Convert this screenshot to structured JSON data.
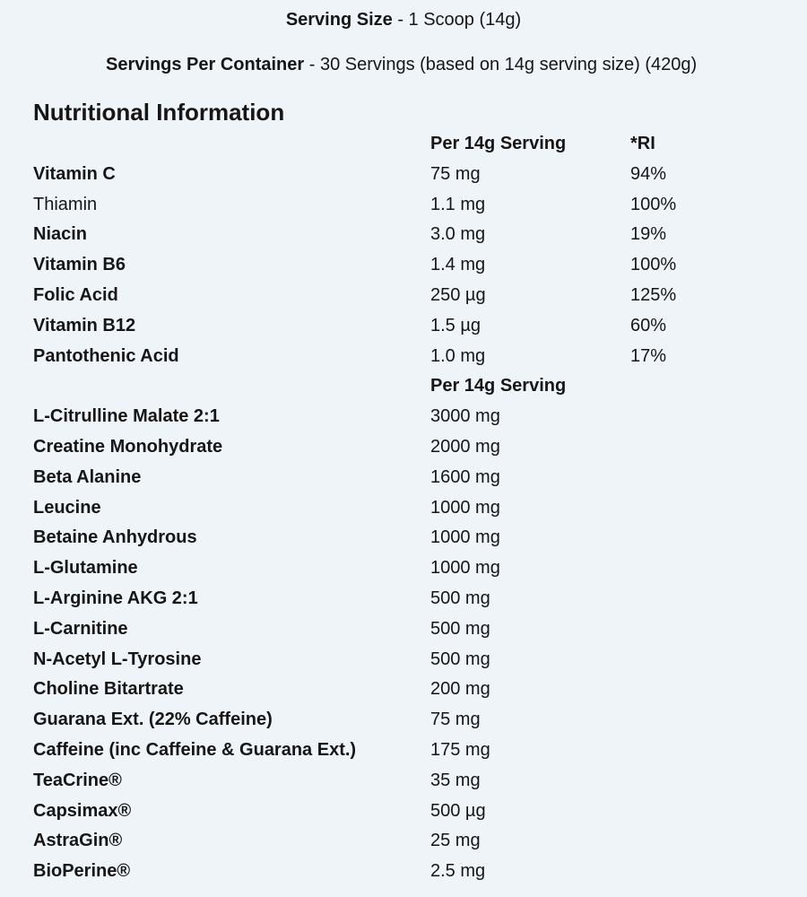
{
  "header": {
    "serving_size_label": "Serving Size",
    "serving_size_value": "- 1 Scoop (14g)",
    "servings_label": "Servings Per Container",
    "servings_value": "- 30 Servings (based on 14g serving size) (420g)"
  },
  "title": "Nutritional Information",
  "vitamins": {
    "columns": [
      "Per 14g Serving",
      "*RI"
    ],
    "rows": [
      [
        "Vitamin C",
        "75 mg",
        "94%"
      ],
      [
        "Thiamin",
        "1.1 mg",
        "100%"
      ],
      [
        "Niacin",
        "3.0 mg",
        "19%"
      ],
      [
        "Vitamin B6",
        "1.4 mg",
        "100%"
      ],
      [
        "Folic Acid",
        "250 µg",
        "125%"
      ],
      [
        "Vitamin B12",
        "1.5 µg",
        "60%"
      ],
      [
        "Pantothenic Acid",
        "1.0 mg",
        "17%"
      ]
    ]
  },
  "ingredients": {
    "columns": [
      "Per 14g Serving"
    ],
    "rows": [
      [
        "L-Citrulline Malate 2:1",
        "3000 mg"
      ],
      [
        "Creatine Monohydrate",
        "2000 mg"
      ],
      [
        "Beta Alanine",
        "1600 mg"
      ],
      [
        "Leucine",
        "1000 mg"
      ],
      [
        "Betaine Anhydrous",
        "1000 mg"
      ],
      [
        "L-Glutamine",
        "1000 mg"
      ],
      [
        "L-Arginine AKG 2:1",
        "500 mg"
      ],
      [
        "L-Carnitine",
        "500 mg"
      ],
      [
        "N-Acetyl L-Tyrosine",
        "500 mg"
      ],
      [
        "Choline Bitartrate",
        "200 mg"
      ],
      [
        "Guarana Ext. (22% Caffeine)",
        "75 mg"
      ],
      [
        "Caffeine (inc Caffeine & Guarana Ext.)",
        "175 mg"
      ],
      [
        "TeaCrine®",
        "35 mg"
      ],
      [
        "Capsimax®",
        "500 µg"
      ],
      [
        "AstraGin®",
        "25 mg"
      ],
      [
        "BioPerine®",
        "2.5 mg"
      ]
    ]
  }
}
